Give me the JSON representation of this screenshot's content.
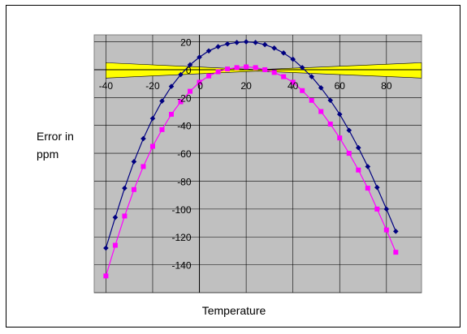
{
  "chart_data": {
    "type": "line",
    "title": "",
    "xlabel": "Temperature",
    "ylabel_line1": "Error in",
    "ylabel_line2": "ppm",
    "xlim": [
      -45,
      95
    ],
    "ylim": [
      -160,
      25
    ],
    "x_ticks": [
      "-40",
      "-20",
      "0",
      "20",
      "40",
      "60",
      "80"
    ],
    "y_ticks": [
      "20",
      "0",
      "-20",
      "-40",
      "-60",
      "-80",
      "-100",
      "-120",
      "-140"
    ],
    "grid": true,
    "plot_background": "#c0c0c0",
    "band": {
      "color": "#ffff00",
      "upper": [
        [
          -40,
          5
        ],
        [
          25,
          0
        ],
        [
          95,
          5
        ]
      ],
      "lower": [
        [
          -40,
          -6
        ],
        [
          25,
          -1
        ],
        [
          95,
          -6
        ]
      ]
    },
    "series": [
      {
        "marker": "diamond",
        "color": "#000080",
        "x": [
          -40,
          -36,
          -32,
          -28,
          -24,
          -20,
          -16,
          -12,
          -8,
          -4,
          0,
          4,
          8,
          12,
          16,
          20,
          24,
          28,
          32,
          36,
          40,
          44,
          48,
          52,
          56,
          60,
          64,
          68,
          72,
          76,
          80,
          84
        ],
        "y": [
          -128,
          -106,
          -85,
          -66,
          -49.5,
          -35,
          -22.5,
          -12,
          -3.5,
          3.5,
          9,
          13.5,
          16.5,
          18.5,
          19.5,
          20,
          19.5,
          18,
          15.5,
          12,
          7.5,
          1.5,
          -5,
          -13,
          -22,
          -32,
          -43.5,
          -56,
          -69.5,
          -84.5,
          -100,
          -116
        ]
      },
      {
        "marker": "square",
        "color": "#ff00ff",
        "x": [
          -40,
          -36,
          -32,
          -28,
          -24,
          -20,
          -16,
          -12,
          -8,
          -4,
          0,
          4,
          8,
          12,
          16,
          20,
          24,
          28,
          32,
          36,
          40,
          44,
          48,
          52,
          56,
          60,
          64,
          68,
          72,
          76,
          80,
          84
        ],
        "y": [
          -148,
          -126,
          -105,
          -86,
          -69.5,
          -55,
          -43,
          -32,
          -23,
          -15.5,
          -9,
          -4.5,
          -1.5,
          0.5,
          1.5,
          2,
          1.5,
          0,
          -2,
          -5,
          -9,
          -15,
          -22,
          -30,
          -39,
          -49,
          -60,
          -72,
          -85,
          -100,
          -115,
          -131
        ]
      }
    ]
  }
}
